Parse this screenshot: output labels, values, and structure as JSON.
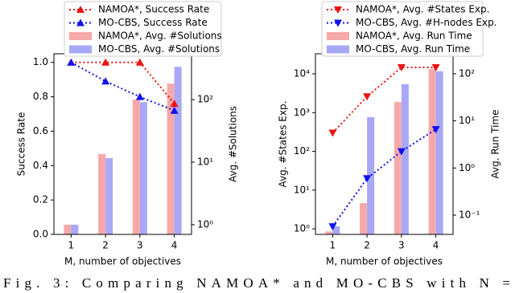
{
  "chart_data": [
    {
      "type": "combo",
      "categories": [
        "1",
        "2",
        "3",
        "4"
      ],
      "xlabel": "M, number of objectives",
      "ylabel": "Success Rate",
      "y2label": "Avg. #Solutions",
      "ylim": [
        0,
        1.05
      ],
      "yticks": [
        {
          "value": 0,
          "label": "0.0"
        },
        {
          "value": 0.2,
          "label": "0.2"
        },
        {
          "value": 0.4,
          "label": "0.4"
        },
        {
          "value": 0.6,
          "label": "0.6"
        },
        {
          "value": 0.8,
          "label": "0.8"
        },
        {
          "value": 1,
          "label": "1.0"
        }
      ],
      "ylog": false,
      "y2lim": [
        0.7,
        540
      ],
      "y2ticks": [
        {
          "value": 1,
          "label": "10⁰"
        },
        {
          "value": 10,
          "label": "10¹"
        },
        {
          "value": 100,
          "label": "10²"
        }
      ],
      "y2log": true,
      "series": [
        {
          "name": "NAMOA*, Success Rate",
          "type": "line",
          "marker": "triangle-up",
          "color": "#ee1111",
          "values": [
            1.0,
            1.0,
            1.0,
            0.76
          ]
        },
        {
          "name": "MO-CBS, Success Rate",
          "type": "line",
          "marker": "triangle-up",
          "color": "#1111ee",
          "values": [
            1.0,
            0.89,
            0.8,
            0.72
          ]
        },
        {
          "name": "NAMOA*, Avg. #Solutions",
          "type": "bar",
          "axis": "y2",
          "color": "#f7a8a8",
          "values": [
            1,
            13.5,
            100,
            180
          ]
        },
        {
          "name": "MO-CBS, Avg. #Solutions",
          "type": "bar",
          "axis": "y2",
          "color": "#a8a8f7",
          "values": [
            1,
            11.6,
            91,
            335
          ]
        }
      ]
    },
    {
      "type": "combo",
      "categories": [
        "1",
        "2",
        "3",
        "4"
      ],
      "xlabel": "M, number of objectives",
      "ylabel": "Avg. #States Exp.",
      "y2label": "Avg. Run Time",
      "ylim": [
        0.72,
        33000
      ],
      "yticks": [
        {
          "value": 1,
          "label": "10⁰"
        },
        {
          "value": 10,
          "label": "10¹"
        },
        {
          "value": 100,
          "label": "10²"
        },
        {
          "value": 1000,
          "label": "10³"
        },
        {
          "value": 10000,
          "label": "10⁴"
        }
      ],
      "ylog": true,
      "y2lim": [
        0.039,
        265
      ],
      "y2ticks": [
        {
          "value": 0.1,
          "label": "10⁻¹"
        },
        {
          "value": 1,
          "label": "10⁰"
        },
        {
          "value": 10,
          "label": "10¹"
        },
        {
          "value": 100,
          "label": "10²"
        }
      ],
      "y2log": true,
      "series": [
        {
          "name": "NAMOA*, Avg. #States Exp.",
          "type": "line",
          "marker": "triangle-down",
          "color": "#ee1111",
          "values": [
            300,
            2600,
            14700,
            14700
          ]
        },
        {
          "name": "MO-CBS, Avg. #H-nodes Exp.",
          "type": "line",
          "marker": "triangle-down",
          "color": "#1111ee",
          "values": [
            1.15,
            20,
            100,
            370
          ]
        },
        {
          "name": "NAMOA*, Avg. Run Time",
          "type": "bar",
          "axis": "y2",
          "color": "#f7a8a8",
          "values": [
            0.045,
            0.18,
            25,
            126
          ]
        },
        {
          "name": "MO-CBS, Avg. Run Time",
          "type": "bar",
          "axis": "y2",
          "color": "#a8a8f7",
          "values": [
            0.058,
            12,
            60,
            113
          ]
        }
      ]
    }
  ],
  "caption": "Fig. 3: Comparing NAMOA* and MO-CBS with N ="
}
